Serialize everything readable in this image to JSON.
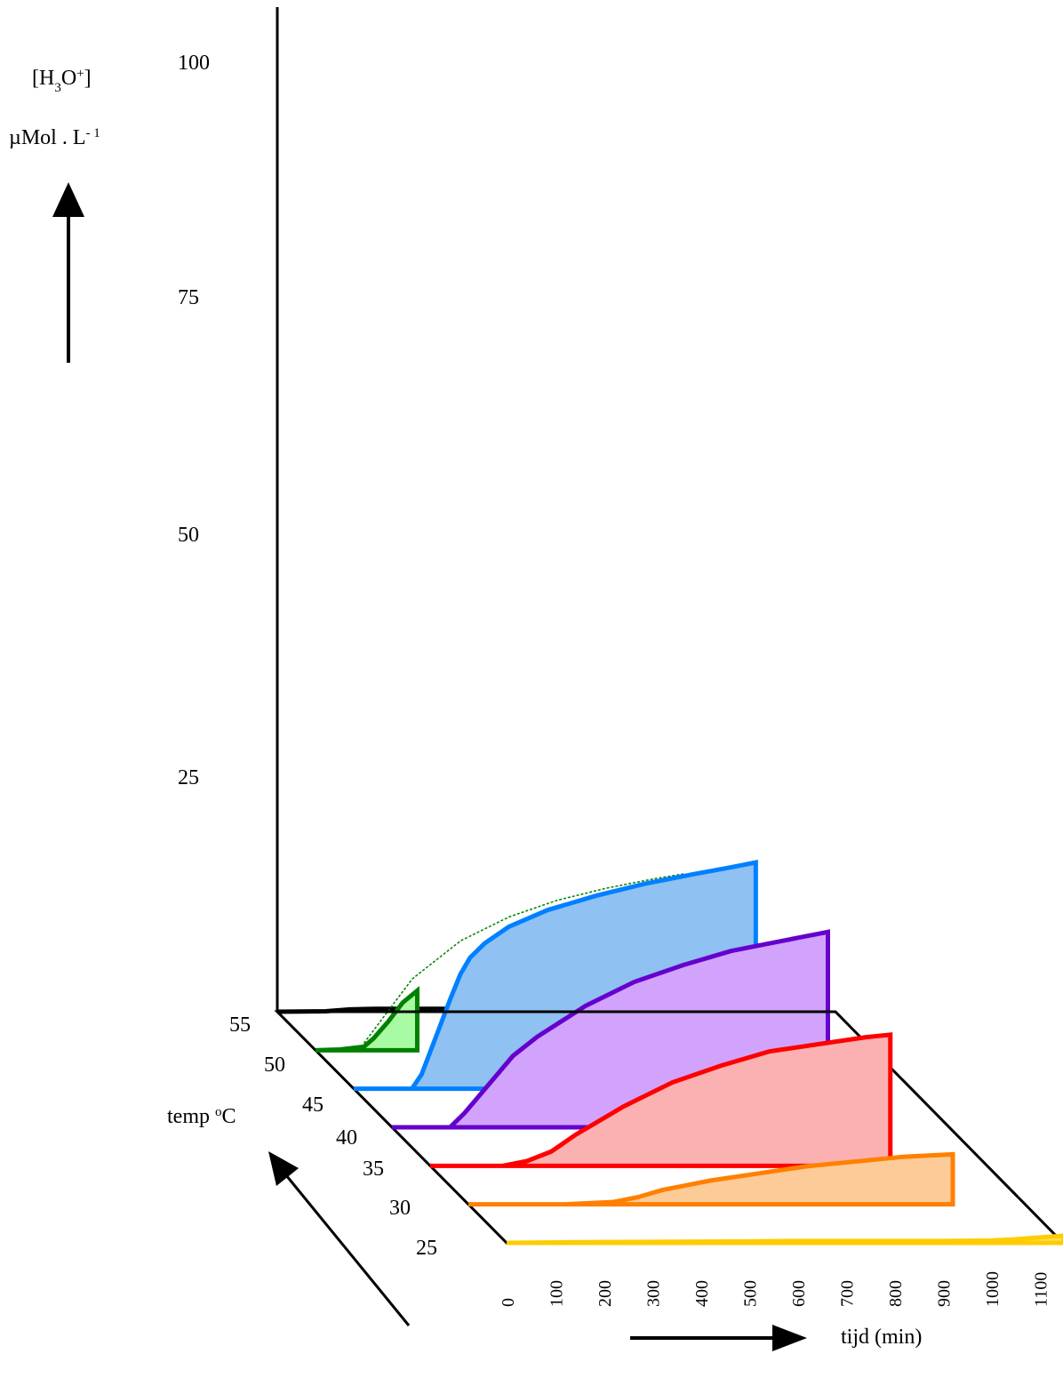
{
  "chart_data": {
    "type": "area",
    "title": "",
    "ylabel_parts": {
      "base": "[H",
      "sub1": "3",
      "mid": "O",
      "sup1": "+",
      "end": "]"
    },
    "yunit_parts": {
      "base": "µMol . L",
      "sup": "- 1"
    },
    "xlabel": "tijd (min)",
    "zlabel_parts": {
      "base": "temp ",
      "sup": "o",
      "end": "C"
    },
    "y_ticks": [
      "25",
      "50",
      "75",
      "100"
    ],
    "y_tick_values": [
      25,
      50,
      75,
      100
    ],
    "x_ticks": [
      "0",
      "100",
      "200",
      "300",
      "400",
      "500",
      "600",
      "700",
      "800",
      "900",
      "1000",
      "1100"
    ],
    "x_tick_values": [
      0,
      100,
      200,
      300,
      400,
      500,
      600,
      700,
      800,
      900,
      1000,
      1100
    ],
    "z_ticks": [
      "55",
      "50",
      "45",
      "40",
      "35",
      "30",
      "25"
    ],
    "z_tick_values": [
      55,
      50,
      45,
      40,
      35,
      30,
      25
    ],
    "xlim": [
      0,
      1150
    ],
    "ylim": [
      0,
      100
    ],
    "series": [
      {
        "temp": 55,
        "color": "#000000",
        "fill": "none",
        "x": [
          0,
          100,
          150,
          200,
          300,
          500,
          650
        ],
        "y": [
          0,
          0.2,
          1,
          1.2,
          1.2,
          1.2,
          1.2
        ],
        "end_x": 650
      },
      {
        "temp": 50,
        "color": "#008000",
        "fill": "#a9fba3",
        "x": [
          0,
          50,
          100,
          120,
          150,
          180,
          210
        ],
        "y": [
          0,
          0.3,
          1.5,
          5,
          12,
          20,
          25
        ],
        "end_x": 210,
        "projection_x": [
          100,
          200,
          300,
          400,
          500,
          600,
          700,
          760
        ],
        "projection_y": [
          3,
          30,
          46,
          56,
          63,
          68,
          72,
          74
        ]
      },
      {
        "temp": 45,
        "color": "#0080ff",
        "fill": "#8fc1f2",
        "x": [
          0,
          50,
          120,
          140,
          170,
          200,
          220,
          240,
          270,
          320,
          400,
          500,
          600,
          700,
          780,
          830
        ],
        "y": [
          0,
          0,
          0,
          6,
          22,
          38,
          48,
          55,
          61,
          68,
          75,
          81,
          86,
          90,
          93,
          95
        ],
        "end_x": 830
      },
      {
        "temp": 40,
        "color": "#6600cc",
        "fill": "#d1a3fc",
        "x": [
          0,
          80,
          120,
          150,
          200,
          250,
          300,
          400,
          500,
          600,
          700,
          800,
          850,
          900
        ],
        "y": [
          0,
          0,
          0,
          6,
          18,
          30,
          38,
          51,
          61,
          68,
          74,
          78,
          80,
          82
        ],
        "end_x": 900
      },
      {
        "temp": 35,
        "color": "#ff0000",
        "fill": "#fbb1b1",
        "x": [
          0,
          100,
          150,
          200,
          250,
          300,
          400,
          500,
          600,
          700,
          800,
          900,
          950
        ],
        "y": [
          0,
          0,
          0,
          2,
          6,
          13,
          25,
          35,
          42,
          48,
          51,
          54,
          55
        ],
        "end_x": 950
      },
      {
        "temp": 30,
        "color": "#ff8000",
        "fill": "#fccb97",
        "x": [
          0,
          200,
          300,
          350,
          400,
          500,
          600,
          700,
          800,
          900,
          1000
        ],
        "y": [
          0,
          0,
          1,
          3,
          6,
          10,
          13,
          16,
          18,
          20,
          21
        ],
        "end_x": 1000
      },
      {
        "temp": 25,
        "color": "#ffcc00",
        "fill": "#ffe066",
        "x": [
          0,
          100,
          300,
          500,
          600,
          800,
          900,
          1000,
          1050,
          1150
        ],
        "y": [
          0,
          0.2,
          0.4,
          0.6,
          0.8,
          0.8,
          0.8,
          1,
          1.5,
          3
        ],
        "end_x": 1150
      }
    ]
  }
}
